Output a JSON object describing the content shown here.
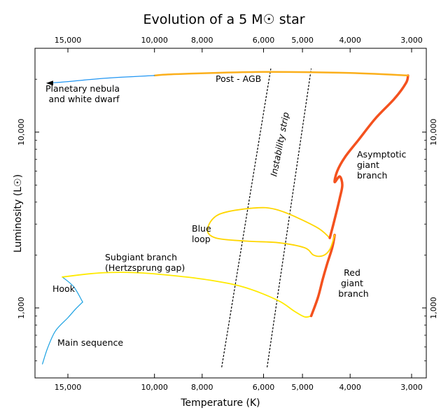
{
  "chart_data": {
    "type": "line",
    "title": "Evolution of a 5 M☉ star",
    "xlabel": "Temperature (K)",
    "ylabel": "Luminosity (L☉)",
    "x_scale": "log",
    "y_scale": "log",
    "x_reversed": true,
    "xlim": [
      17500,
      2800
    ],
    "ylim": [
      400,
      30000
    ],
    "x_ticks": [
      {
        "value": 15000,
        "label": "15,000"
      },
      {
        "value": 10000,
        "label": "10,000"
      },
      {
        "value": 8000,
        "label": "8,000"
      },
      {
        "value": 6000,
        "label": "6,000"
      },
      {
        "value": 5000,
        "label": "5,000"
      },
      {
        "value": 4000,
        "label": "4,000"
      },
      {
        "value": 3000,
        "label": "3,000"
      }
    ],
    "y_ticks": [
      {
        "value": 1000,
        "label": "1,000"
      },
      {
        "value": 10000,
        "label": "10,000"
      }
    ],
    "series": [
      {
        "name": "Main sequence",
        "color": "#1ba1e2",
        "width": 1.2,
        "points": [
          [
            16900,
            480
          ],
          [
            16500,
            590
          ],
          [
            15900,
            740
          ],
          [
            15000,
            880
          ],
          [
            14500,
            980
          ],
          [
            14000,
            1080
          ]
        ]
      },
      {
        "name": "Hook",
        "color": "#1ba1e2",
        "width": 1.2,
        "points": [
          [
            14000,
            1080
          ],
          [
            14600,
            1320
          ],
          [
            15400,
            1500
          ]
        ]
      },
      {
        "name": "Subgiant branch",
        "color": "#ffea00",
        "width": 1.8,
        "points": [
          [
            15400,
            1500
          ],
          [
            13000,
            1580
          ],
          [
            11000,
            1590
          ],
          [
            9000,
            1520
          ],
          [
            7500,
            1420
          ],
          [
            6500,
            1300
          ],
          [
            5600,
            1100
          ],
          [
            5200,
            960
          ],
          [
            4950,
            890
          ],
          [
            4800,
            900
          ]
        ]
      },
      {
        "name": "Red giant branch",
        "color": "#f4511e",
        "width": 3.5,
        "points": [
          [
            4800,
            900
          ],
          [
            4650,
            1150
          ],
          [
            4550,
            1450
          ],
          [
            4450,
            1800
          ],
          [
            4350,
            2200
          ],
          [
            4300,
            2600
          ]
        ]
      },
      {
        "name": "Blue loop",
        "color": "#ffd600",
        "width": 1.8,
        "points": [
          [
            4300,
            2600
          ],
          [
            4400,
            2150
          ],
          [
            4550,
            1980
          ],
          [
            4750,
            2000
          ],
          [
            4950,
            2200
          ],
          [
            5600,
            2350
          ],
          [
            6500,
            2400
          ],
          [
            7500,
            2500
          ],
          [
            7800,
            2800
          ],
          [
            7400,
            3400
          ],
          [
            6300,
            3700
          ],
          [
            5600,
            3600
          ],
          [
            4700,
            2900
          ],
          [
            4400,
            2500
          ]
        ]
      },
      {
        "name": "Asymptotic giant branch",
        "color": "#f4511e",
        "width": 3.5,
        "points": [
          [
            4400,
            2500
          ],
          [
            4300,
            3200
          ],
          [
            4200,
            4200
          ],
          [
            4150,
            5000
          ],
          [
            4200,
            5600
          ],
          [
            4300,
            5200
          ],
          [
            4250,
            6000
          ],
          [
            4100,
            7200
          ],
          [
            3850,
            9000
          ],
          [
            3550,
            12000
          ],
          [
            3250,
            15500
          ],
          [
            3080,
            19000
          ],
          [
            3050,
            21000
          ]
        ]
      },
      {
        "name": "Post - AGB",
        "color": "#fbaf1b",
        "width": 2.5,
        "points": [
          [
            3050,
            21000
          ],
          [
            4000,
            21700
          ],
          [
            6000,
            22000
          ],
          [
            9000,
            21400
          ],
          [
            10000,
            21000
          ]
        ]
      },
      {
        "name": "Planetary nebula and white dwarf",
        "color": "#2196f3",
        "width": 1.2,
        "points": [
          [
            10000,
            21000
          ],
          [
            12500,
            20300
          ],
          [
            15000,
            19400
          ],
          [
            16500,
            19000
          ]
        ]
      }
    ],
    "instability_strip": {
      "label": "Instability strip",
      "left_edge": [
        [
          7300,
          460
        ],
        [
          5800,
          23000
        ]
      ],
      "right_edge": [
        [
          5900,
          460
        ],
        [
          4800,
          23000
        ]
      ]
    },
    "annotations": [
      {
        "text": "Post - AGB"
      },
      {
        "lines": [
          "Planetary nebula",
          "and white dwarf"
        ]
      },
      {
        "lines": [
          "Asymptotic",
          "giant",
          "branch"
        ]
      },
      {
        "lines": [
          "Blue",
          "loop"
        ]
      },
      {
        "lines": [
          "Subgiant branch",
          "(Hertzsprung gap)"
        ]
      },
      {
        "text": "Hook"
      },
      {
        "lines": [
          "Red",
          "giant",
          "branch"
        ]
      },
      {
        "text": "Main sequence"
      }
    ]
  }
}
